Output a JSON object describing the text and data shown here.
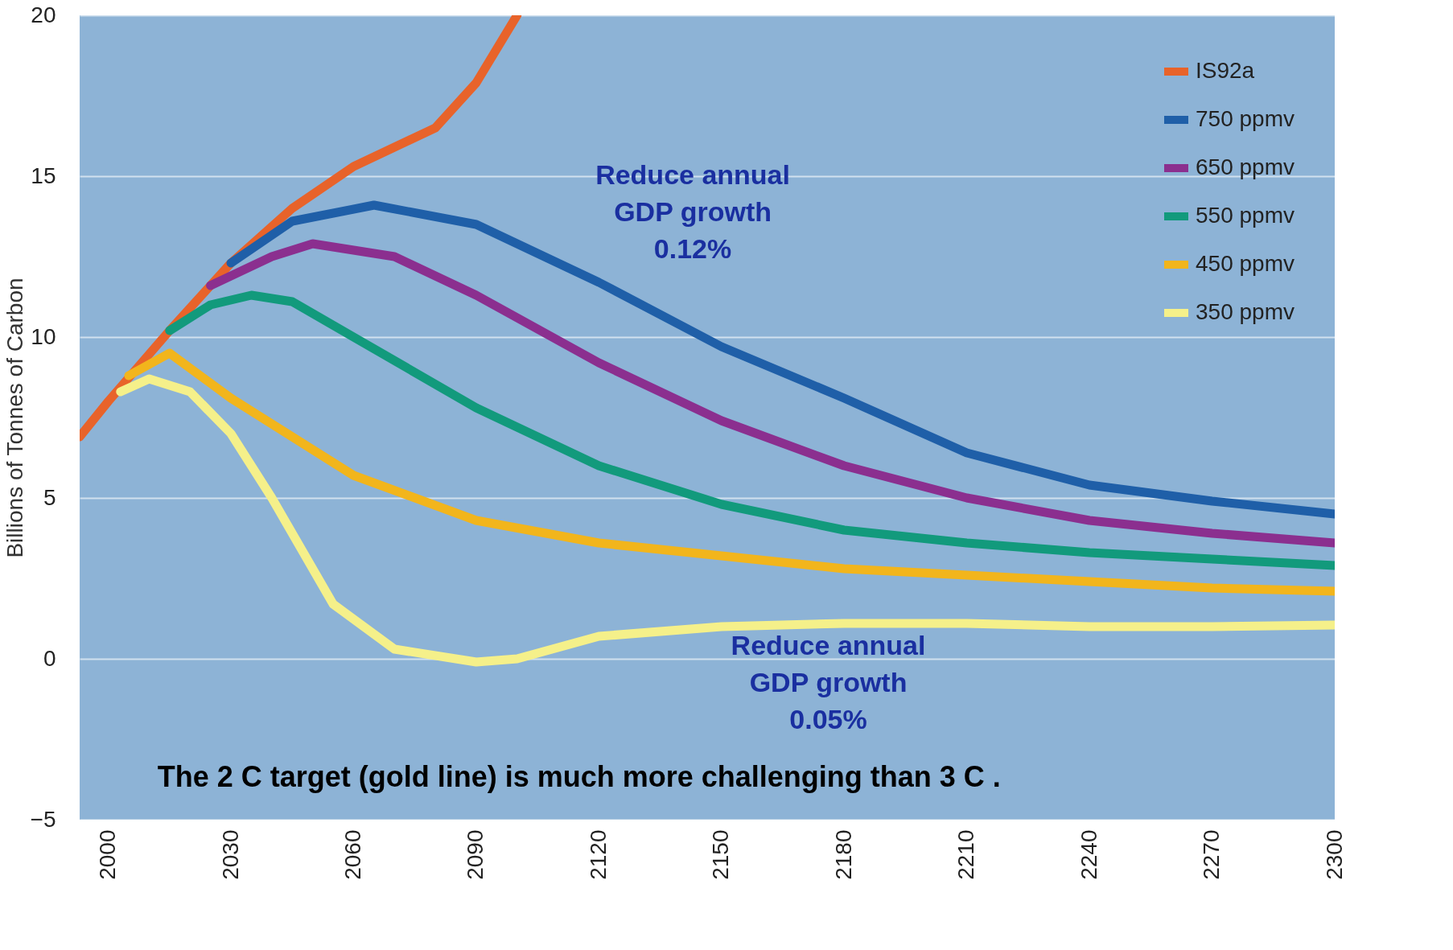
{
  "chart_data": {
    "type": "line",
    "ylabel": "Billions of Tonnes of Carbon",
    "xlim": [
      1993,
      2300
    ],
    "xticks": [
      2000,
      2030,
      2060,
      2090,
      2120,
      2150,
      2180,
      2210,
      2240,
      2270,
      2300
    ],
    "ylim": [
      -5,
      20
    ],
    "yticks": [
      -5,
      0,
      5,
      10,
      15,
      20
    ],
    "grid": "y",
    "legend": "top right",
    "line_style": "solid",
    "marker": "none",
    "series": [
      {
        "name": "IS92a",
        "color": "#e8632a",
        "x": [
          1993,
          2000,
          2015,
          2030,
          2045,
          2060,
          2080,
          2090,
          2100
        ],
        "values": [
          6.9,
          8.0,
          10.2,
          12.3,
          14.0,
          15.3,
          16.5,
          17.9,
          20.0
        ]
      },
      {
        "name": "750 ppmv",
        "color": "#1f5fa8",
        "x": [
          2030,
          2045,
          2065,
          2090,
          2120,
          2150,
          2180,
          2210,
          2240,
          2270,
          2300
        ],
        "values": [
          12.3,
          13.6,
          14.1,
          13.5,
          11.7,
          9.7,
          8.1,
          6.4,
          5.4,
          4.9,
          4.5
        ]
      },
      {
        "name": "650 ppmv",
        "color": "#8b2f8f",
        "x": [
          2025,
          2040,
          2050,
          2070,
          2090,
          2120,
          2150,
          2180,
          2210,
          2240,
          2270,
          2300
        ],
        "values": [
          11.6,
          12.5,
          12.9,
          12.5,
          11.3,
          9.2,
          7.4,
          6.0,
          5.0,
          4.3,
          3.9,
          3.6
        ]
      },
      {
        "name": "550 ppmv",
        "color": "#129a7c",
        "x": [
          2015,
          2025,
          2035,
          2045,
          2060,
          2090,
          2120,
          2150,
          2180,
          2210,
          2240,
          2270,
          2300
        ],
        "values": [
          10.2,
          11.0,
          11.3,
          11.1,
          10.0,
          7.8,
          6.0,
          4.8,
          4.0,
          3.6,
          3.3,
          3.1,
          2.9
        ]
      },
      {
        "name": "450 ppmv",
        "color": "#f2b51c",
        "x": [
          2005,
          2015,
          2030,
          2060,
          2090,
          2120,
          2150,
          2180,
          2210,
          2240,
          2270,
          2300
        ],
        "values": [
          8.8,
          9.5,
          8.1,
          5.7,
          4.3,
          3.6,
          3.2,
          2.8,
          2.6,
          2.4,
          2.2,
          2.1
        ]
      },
      {
        "name": "350 ppmv",
        "color": "#f5f08a",
        "x": [
          2003,
          2010,
          2020,
          2030,
          2040,
          2055,
          2070,
          2090,
          2100,
          2120,
          2150,
          2180,
          2210,
          2240,
          2270,
          2300
        ],
        "values": [
          8.3,
          8.7,
          8.3,
          7.0,
          5.0,
          1.7,
          0.3,
          -0.1,
          0.0,
          0.7,
          1.0,
          1.1,
          1.1,
          1.0,
          1.0,
          1.05
        ]
      }
    ],
    "annotations": [
      "Reduce annual\nGDP growth\n0.12%",
      "Reduce annual\nGDP growth\n0.05%",
      "The 2 C target (gold line) is much more challenging than  3 C ."
    ]
  }
}
